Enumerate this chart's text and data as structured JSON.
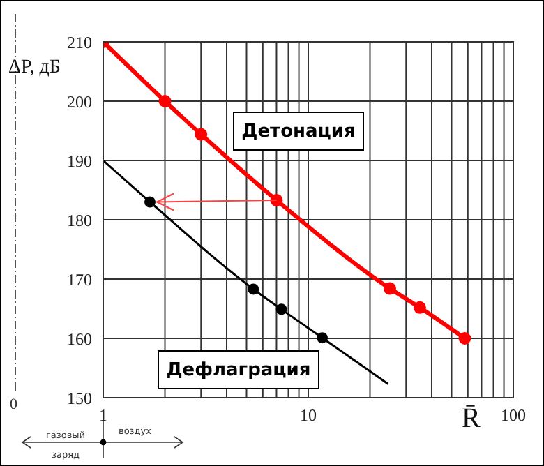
{
  "chart_data": {
    "type": "line",
    "xlabel": "R̄",
    "ylabel": "ΔP, дБ",
    "log": "x",
    "xlim": [
      1,
      100
    ],
    "xticks": [
      1,
      {
        "value": 2,
        "label": null
      },
      {
        "value": 3,
        "label": null
      },
      {
        "value": 4,
        "label": null
      },
      {
        "value": 5,
        "label": null
      },
      {
        "value": 6,
        "label": null
      },
      {
        "value": 7,
        "label": null
      },
      {
        "value": 8,
        "label": null
      },
      {
        "value": 9,
        "label": null
      },
      10,
      {
        "value": 20,
        "label": null
      },
      {
        "value": 30,
        "label": null
      },
      {
        "value": 40,
        "label": null
      },
      {
        "value": 50,
        "label": null
      },
      {
        "value": 60,
        "label": null
      },
      {
        "value": 70,
        "label": null
      },
      {
        "value": 80,
        "label": null
      },
      {
        "value": 90,
        "label": null
      },
      100
    ],
    "ylim": [
      150,
      210
    ],
    "yticks": [
      150,
      160,
      170,
      180,
      190,
      200,
      210
    ],
    "grid": true,
    "annotations": [
      "0",
      "газовый заряд",
      "воздух"
    ],
    "series": [
      {
        "name": "Детонация",
        "color": "#ff0000",
        "marker": "circle",
        "x": [
          1,
          2,
          3,
          7,
          25,
          35,
          58
        ],
        "values": [
          210,
          200,
          194.4,
          183.3,
          168.4,
          165.2,
          160
        ]
      },
      {
        "name": "Дефлаграция",
        "color": "#000000",
        "marker": "none",
        "x": [
          1,
          1.69,
          5.4,
          7.4,
          11.7,
          24.5
        ],
        "values": [
          190,
          183,
          168.3,
          164.9,
          160.1,
          152.3
        ]
      },
      {
        "type": "scatter",
        "color": "#000000",
        "marker": "circle",
        "x": [
          1.69,
          5.4,
          7.4,
          11.7
        ],
        "values": [
          183,
          168.3,
          164.9,
          160.1
        ]
      }
    ]
  }
}
